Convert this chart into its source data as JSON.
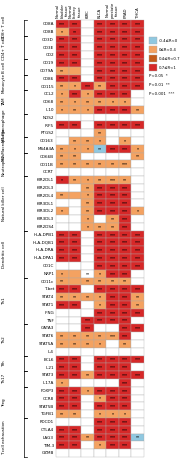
{
  "col_labels": [
    "Normal bladder tissue",
    "Normal kidney tissue",
    "KIRC",
    "BLCA",
    "Normal prostate tissue",
    "PRAD",
    "THCA"
  ],
  "row_groups": [
    {
      "group": "CD8+ T cell",
      "genes": [
        "CD8A",
        "CD8B"
      ]
    },
    {
      "group": "CD4+ T cell",
      "genes": [
        "CD3D",
        "CD3E",
        "CD2"
      ]
    },
    {
      "group": "B cell",
      "genes": [
        "CD19",
        "CD79A"
      ]
    },
    {
      "group": "Monocyte",
      "genes": [
        "CD86",
        "CD115"
      ]
    },
    {
      "group": "TAM",
      "genes": [
        "CCL2",
        "CD68",
        "IL10"
      ]
    },
    {
      "group": "M1 Macrophage",
      "genes": [
        "NOS2",
        "IRF5",
        "PTGS2"
      ]
    },
    {
      "group": "M2 Macrophage",
      "genes": [
        "CD163",
        "MS4A4A"
      ]
    },
    {
      "group": "Neutrophils",
      "genes": [
        "CD66B",
        "CD11B",
        "CCRT"
      ]
    },
    {
      "group": "Natural killer cell",
      "genes": [
        "KIR2DL1",
        "KIR2DL3",
        "KIR2DL4",
        "KIR3DL1",
        "KIR3DL2",
        "KIR3DL3",
        "KIR2DS4"
      ]
    },
    {
      "group": "Dendritic cell",
      "genes": [
        "HLA-DPB1",
        "HLA-DQB1",
        "HLA-DRA",
        "HLA-DPA1",
        "CD1C",
        "NRP1"
      ]
    },
    {
      "group": "Th1",
      "genes": [
        "CD11c",
        "T-bet",
        "STAT4",
        "STAT1",
        "IFNG",
        "TNF"
      ]
    },
    {
      "group": "Th2",
      "genes": [
        "GATA3",
        "STAT6",
        "STAT5A",
        "IL4"
      ]
    },
    {
      "group": "Tfh",
      "genes": [
        "BCL6",
        "IL21"
      ]
    },
    {
      "group": "Th17",
      "genes": [
        "STAT3",
        "IL17A"
      ]
    },
    {
      "group": "Treg",
      "genes": [
        "FOXP3",
        "CCR8",
        "STAT5B",
        "TGFB1"
      ]
    },
    {
      "group": "T cell exhaustion",
      "genes": [
        "PDCD1",
        "CTLA4",
        "LAG3",
        "TIM-3",
        "GZMB"
      ]
    }
  ],
  "data": {
    "CD8A": [
      "red",
      "red",
      "white",
      "red",
      "red",
      "red",
      "red"
    ],
    "CD8B": [
      "orange",
      "red",
      "white",
      "red",
      "red",
      "red",
      "red"
    ],
    "CD3D": [
      "red",
      "red",
      "white",
      "red",
      "red",
      "red",
      "red"
    ],
    "CD3E": [
      "red",
      "red",
      "white",
      "red",
      "red",
      "red",
      "red"
    ],
    "CD2": [
      "red",
      "red",
      "white",
      "red",
      "red",
      "red",
      "red"
    ],
    "CD19": [
      "red",
      "red",
      "white",
      "red",
      "red",
      "red",
      "red"
    ],
    "CD79A": [
      "orange",
      "orange",
      "white",
      "red",
      "red",
      "red",
      "red"
    ],
    "CD86": [
      "red",
      "red",
      "white",
      "red",
      "red",
      "red",
      "red"
    ],
    "CD115": [
      "orange",
      "orange",
      "red",
      "orange",
      "red",
      "red",
      "red"
    ],
    "CCL2": [
      "orange",
      "red",
      "orange",
      "red",
      "red",
      "red",
      "white"
    ],
    "CD68": [
      "orange",
      "orange",
      "orange",
      "orange",
      "orange",
      "orange",
      "white"
    ],
    "IL10": [
      "orange",
      "orange",
      "orange",
      "red",
      "red",
      "red",
      "orange"
    ],
    "NOS2": [
      "white",
      "white",
      "white",
      "white",
      "white",
      "white",
      "white"
    ],
    "IRF5": [
      "red",
      "red",
      "white",
      "red",
      "red",
      "red",
      "red"
    ],
    "PTGS2": [
      "white",
      "white",
      "white",
      "orange",
      "white",
      "white",
      "white"
    ],
    "CD163": [
      "white",
      "orange",
      "orange",
      "orange",
      "white",
      "orange",
      "white"
    ],
    "MS4A4A": [
      "orange",
      "orange",
      "orange",
      "blue",
      "red",
      "red",
      "orange"
    ],
    "CD66B": [
      "orange",
      "orange",
      "white",
      "white",
      "white",
      "white",
      "orange"
    ],
    "CD11B": [
      "orange",
      "orange",
      "orange",
      "orange",
      "orange",
      "orange",
      "white"
    ],
    "CCRT": [
      "white",
      "white",
      "white",
      "white",
      "white",
      "white",
      "white"
    ],
    "KIR2DL1": [
      "red",
      "orange",
      "orange",
      "orange",
      "orange",
      "orange",
      "white"
    ],
    "KIR2DL3": [
      "white",
      "white",
      "orange",
      "red",
      "red",
      "red",
      "white"
    ],
    "KIR2DL4": [
      "orange",
      "orange",
      "orange",
      "red",
      "red",
      "red",
      "white"
    ],
    "KIR3DL1": [
      "white",
      "white",
      "orange",
      "red",
      "red",
      "red",
      "white"
    ],
    "KIR3DL2": [
      "orange",
      "white",
      "orange",
      "red",
      "red",
      "red",
      "orange"
    ],
    "KIR3DL3": [
      "white",
      "white",
      "orange",
      "white",
      "orange",
      "red",
      "white"
    ],
    "KIR2DS4": [
      "white",
      "white",
      "orange",
      "orange",
      "orange",
      "red",
      "white"
    ],
    "HLA-DPB1": [
      "red",
      "red",
      "white",
      "red",
      "red",
      "red",
      "red"
    ],
    "HLA-DQB1": [
      "red",
      "red",
      "white",
      "red",
      "red",
      "red",
      "red"
    ],
    "HLA-DRA": [
      "red",
      "red",
      "white",
      "red",
      "red",
      "red",
      "red"
    ],
    "HLA-DPA1": [
      "red",
      "red",
      "white",
      "red",
      "red",
      "red",
      "red"
    ],
    "CD1C": [
      "white",
      "white",
      "white",
      "red",
      "red",
      "red",
      "red"
    ],
    "NRP1": [
      "orange",
      "orange",
      "white",
      "orange",
      "red",
      "red",
      "white"
    ],
    "CD11c": [
      "orange",
      "orange",
      "orange",
      "orange",
      "orange",
      "orange",
      "white"
    ],
    "T-bet": [
      "red",
      "red",
      "white",
      "red",
      "red",
      "red",
      "red"
    ],
    "STAT4": [
      "orange",
      "orange",
      "orange",
      "orange",
      "red",
      "red",
      "orange"
    ],
    "STAT1": [
      "red",
      "red",
      "white",
      "orange",
      "red",
      "red",
      "orange"
    ],
    "IFNG": [
      "white",
      "white",
      "white",
      "red",
      "red",
      "red",
      "red"
    ],
    "TNF": [
      "white",
      "white",
      "red",
      "red",
      "red",
      "red",
      "white"
    ],
    "GATA3": [
      "white",
      "white",
      "red",
      "white",
      "white",
      "red",
      "red"
    ],
    "STAT6": [
      "orange",
      "orange",
      "orange",
      "orange",
      "orange",
      "red",
      "white"
    ],
    "STAT5A": [
      "orange",
      "orange",
      "orange",
      "orange",
      "white",
      "orange",
      "white"
    ],
    "IL4": [
      "white",
      "white",
      "white",
      "white",
      "white",
      "white",
      "white"
    ],
    "BCL6": [
      "red",
      "red",
      "white",
      "red",
      "red",
      "red",
      "red"
    ],
    "IL21": [
      "red",
      "red",
      "white",
      "red",
      "red",
      "red",
      "white"
    ],
    "STAT3": [
      "red",
      "red",
      "orange",
      "red",
      "red",
      "red",
      "red"
    ],
    "IL17A": [
      "orange",
      "white",
      "white",
      "white",
      "white",
      "red",
      "white"
    ],
    "FOXP3": [
      "red",
      "red",
      "orange",
      "red",
      "red",
      "red",
      "white"
    ],
    "CCR8": [
      "red",
      "red",
      "white",
      "orange",
      "red",
      "red",
      "white"
    ],
    "STAT5B": [
      "red",
      "red",
      "white",
      "red",
      "red",
      "red",
      "white"
    ],
    "TGFB1": [
      "orange",
      "orange",
      "white",
      "orange",
      "orange",
      "orange",
      "white"
    ],
    "PDCD1": [
      "white",
      "white",
      "white",
      "red",
      "red",
      "red",
      "white"
    ],
    "CTLA4": [
      "red",
      "red",
      "white",
      "red",
      "red",
      "red",
      "white"
    ],
    "LAG3": [
      "red",
      "red",
      "orange",
      "red",
      "red",
      "red",
      "blue"
    ],
    "TIM-3": [
      "red",
      "red",
      "white",
      "orange",
      "red",
      "red",
      "white"
    ],
    "GZMB": [
      "white",
      "white",
      "white",
      "white",
      "white",
      "white",
      "white"
    ]
  },
  "stars": {
    "CD8A": [
      "***",
      "***",
      "",
      "***",
      "***",
      "***",
      "***"
    ],
    "CD8B": [
      "*",
      "**",
      "",
      "***",
      "***",
      "***",
      "***"
    ],
    "CD3D": [
      "***",
      "***",
      "",
      "***",
      "***",
      "***",
      "***"
    ],
    "CD3E": [
      "***",
      "***",
      "",
      "***",
      "***",
      "***",
      "***"
    ],
    "CD2": [
      "***",
      "***",
      "",
      "***",
      "***",
      "***",
      "***"
    ],
    "CD19": [
      "***",
      "***",
      "",
      "***",
      "***",
      "***",
      "***"
    ],
    "CD79A": [
      "**",
      "",
      "",
      "***",
      "***",
      "***",
      "***"
    ],
    "CD86": [
      "***",
      "***",
      "",
      "***",
      "***",
      "***",
      "***"
    ],
    "CD115": [
      "**",
      "*",
      "***",
      "**",
      "***",
      "***",
      "***"
    ],
    "CCL2": [
      "*",
      "***",
      "*",
      "***",
      "***",
      "***",
      ""
    ],
    "CD68": [
      "**",
      "*",
      "**",
      "**",
      "*",
      "*",
      ""
    ],
    "IL10": [
      "*",
      "**",
      "*",
      "***",
      "***",
      "***",
      "**"
    ],
    "NOS2": [
      "",
      "",
      "",
      "",
      "",
      "",
      ""
    ],
    "IRF5": [
      "***",
      "***",
      "",
      "***",
      "***",
      "***",
      "***"
    ],
    "PTGS2": [
      "",
      "",
      "",
      "**",
      "",
      "",
      ""
    ],
    "CD163": [
      "",
      "**",
      "**",
      "*",
      "",
      "*",
      ""
    ],
    "MS4A4A": [
      "**",
      "*",
      "*",
      "**",
      "***",
      "***",
      "*"
    ],
    "CD66B": [
      "**",
      "**",
      "",
      "",
      "",
      "",
      "**"
    ],
    "CD11B": [
      "**",
      "**",
      "**",
      "**",
      "**",
      "***",
      ""
    ],
    "CCRT": [
      "",
      "",
      "",
      "",
      "",
      "",
      ""
    ],
    "KIR2DL1": [
      "*",
      "**",
      "*",
      "**",
      "***",
      "**",
      ""
    ],
    "KIR2DL3": [
      "",
      "",
      "**",
      "***",
      "***",
      "***",
      ""
    ],
    "KIR2DL4": [
      "**",
      "",
      "*",
      "***",
      "***",
      "***",
      ""
    ],
    "KIR3DL1": [
      "",
      "",
      "**",
      "***",
      "***",
      "***",
      ""
    ],
    "KIR3DL2": [
      "*",
      "",
      "**",
      "***",
      "***",
      "***",
      "*"
    ],
    "KIR3DL3": [
      "",
      "",
      "*",
      "",
      "**",
      "***",
      ""
    ],
    "KIR2DS4": [
      "",
      "",
      "*",
      "**",
      "**",
      "***",
      ""
    ],
    "HLA-DPB1": [
      "***",
      "***",
      "",
      "***",
      "***",
      "***",
      "***"
    ],
    "HLA-DQB1": [
      "***",
      "***",
      "",
      "***",
      "***",
      "***",
      "***"
    ],
    "HLA-DRA": [
      "***",
      "***",
      "",
      "***",
      "***",
      "***",
      "***"
    ],
    "HLA-DPA1": [
      "***",
      "***",
      "",
      "***",
      "***",
      "***",
      "***"
    ],
    "CD1C": [
      "",
      "",
      "",
      "***",
      "***",
      "***",
      "***"
    ],
    "NRP1": [
      "*",
      "",
      "**",
      "*",
      "***",
      "***",
      ""
    ],
    "CD11c": [
      "**",
      "",
      "**",
      "**",
      "**",
      "**",
      ""
    ],
    "T-bet": [
      "***",
      "***",
      "",
      "***",
      "***",
      "***",
      "***"
    ],
    "STAT4": [
      "**",
      "**",
      "**",
      "*",
      "***",
      "***",
      "**"
    ],
    "STAT1": [
      "***",
      "***",
      "",
      "*",
      "***",
      "***",
      "**"
    ],
    "IFNG": [
      "",
      "",
      "",
      "***",
      "***",
      "***",
      "***"
    ],
    "TNF": [
      "",
      "",
      "***",
      "***",
      "***",
      "***",
      ""
    ],
    "GATA3": [
      "",
      "",
      "***",
      "",
      "",
      "***",
      "***"
    ],
    "STAT6": [
      "**",
      "**",
      "**",
      "**",
      "***",
      "***",
      ""
    ],
    "STAT5A": [
      "**",
      "**",
      "**",
      "*",
      "",
      "**",
      ""
    ],
    "IL4": [
      "",
      "",
      "",
      "",
      "",
      "",
      ""
    ],
    "BCL6": [
      "***",
      "***",
      "",
      "***",
      "***",
      "***",
      "***"
    ],
    "IL21": [
      "***",
      "***",
      "",
      "***",
      "***",
      "***",
      ""
    ],
    "STAT3": [
      "***",
      "***",
      "**",
      "***",
      "***",
      "***",
      "***"
    ],
    "IL17A": [
      "*",
      "",
      "",
      "",
      "",
      "***",
      ""
    ],
    "FOXP3": [
      "***",
      "***",
      "*",
      "***",
      "***",
      "***",
      ""
    ],
    "CCR8": [
      "***",
      "***",
      "",
      "*",
      "***",
      "***",
      ""
    ],
    "STAT5B": [
      "***",
      "***",
      "",
      "***",
      "***",
      "***",
      ""
    ],
    "TGFB1": [
      "**",
      "**",
      "",
      "*",
      "*",
      "*",
      ""
    ],
    "PDCD1": [
      "",
      "",
      "",
      "***",
      "***",
      "***",
      ""
    ],
    "CTLA4": [
      "***",
      "***",
      "",
      "***",
      "***",
      "***",
      ""
    ],
    "LAG3": [
      "***",
      "***",
      "**",
      "***",
      "***",
      "***",
      "**"
    ],
    "TIM-3": [
      "***",
      "***",
      "",
      "*",
      "***",
      "***",
      ""
    ],
    "GZMB": [
      "",
      "",
      "",
      "",
      "",
      "",
      ""
    ]
  },
  "color_map": {
    "red": "#d62828",
    "orange": "#f4a261",
    "brown": "#c45c1a",
    "blue": "#90c8e0",
    "white": "#ffffff"
  },
  "legend_colors": [
    "#90c8e0",
    "#f4a261",
    "#c45c1a",
    "#d62828"
  ],
  "legend_color_labels": [
    "-0.4≤R<0",
    "0≤R<0.4",
    "0.4≤R<0.7",
    "0.7≤R<1"
  ],
  "legend_p_labels": [
    "P<0.05  *",
    "P<0.01  **",
    "P<0.001  ***"
  ]
}
